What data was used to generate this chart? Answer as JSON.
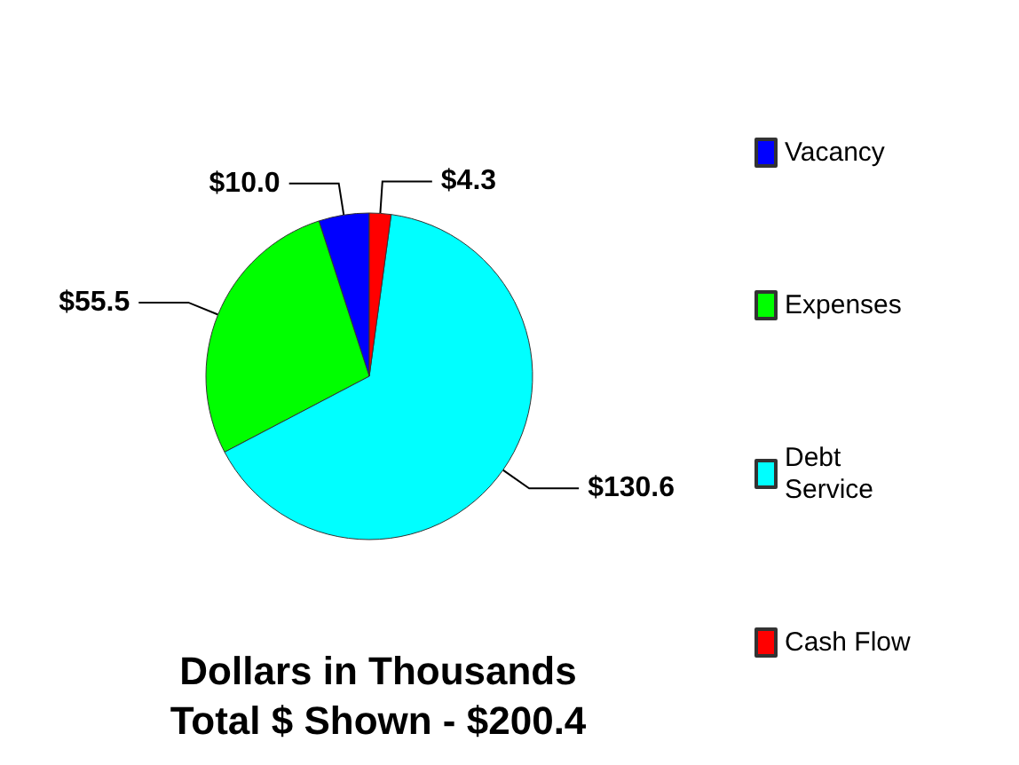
{
  "chart_data": {
    "type": "pie",
    "title": "Dollars in Thousands",
    "subtitle": "Total $ Shown - $200.4",
    "categories": [
      "Vacancy",
      "Expenses",
      "Debt Service",
      "Cash Flow"
    ],
    "values": [
      10.0,
      55.5,
      130.6,
      4.3
    ],
    "colors": [
      "#0000ff",
      "#00ff00",
      "#00ffff",
      "#ff0000"
    ],
    "value_labels": [
      "$10.0",
      "$55.5",
      "$130.6",
      "$4.3"
    ],
    "legend": "right"
  }
}
